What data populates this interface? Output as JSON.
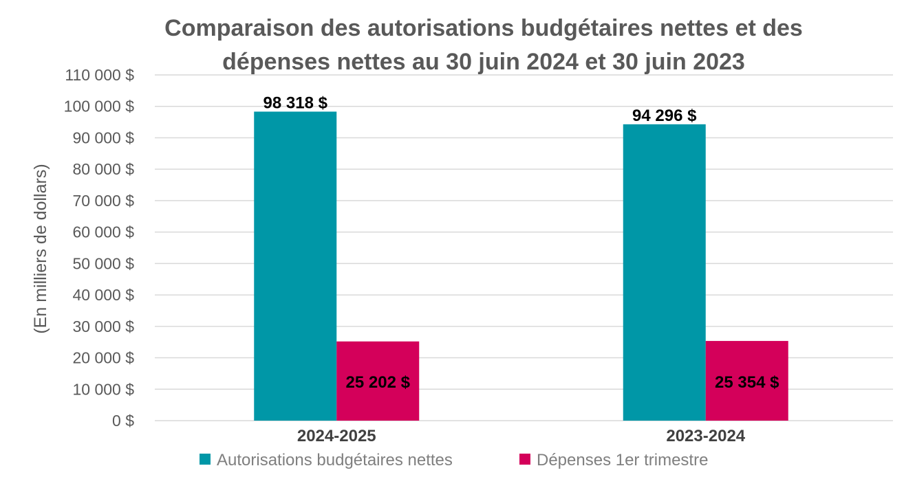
{
  "chart_data": {
    "type": "bar",
    "title": "Comparaison des autorisations budgétaires nettes et des dépenses nettes au 30 juin 2024 et 30 juin 2023",
    "title_lines": [
      "Comparaison des autorisations budgétaires nettes et des",
      "dépenses nettes au 30 juin 2024 et 30 juin 2023"
    ],
    "categories": [
      "2024-2025",
      "2023-2024"
    ],
    "series": [
      {
        "name": "Autorisations budgétaires nettes",
        "values": [
          98318,
          94296
        ],
        "labels": [
          "98 318 $",
          "94 296 $"
        ],
        "color": "#0097a7"
      },
      {
        "name": "Dépenses 1er trimestre",
        "values": [
          25202,
          25354
        ],
        "labels": [
          "25 202 $",
          "25 354 $"
        ],
        "color": "#d4005a"
      }
    ],
    "xlabel": "",
    "ylabel": "(En milliers de dollars)",
    "ylim": [
      0,
      110000
    ],
    "yticks": [
      0,
      10000,
      20000,
      30000,
      40000,
      50000,
      60000,
      70000,
      80000,
      90000,
      100000,
      110000
    ],
    "ytick_labels": [
      "0 $",
      "10 000 $",
      "20 000 $",
      "30 000 $",
      "40 000 $",
      "50 000 $",
      "60 000 $",
      "70 000 $",
      "80 000 $",
      "90 000 $",
      "100 000 $",
      "110 000 $"
    ],
    "grid": true,
    "legend_position": "bottom"
  }
}
